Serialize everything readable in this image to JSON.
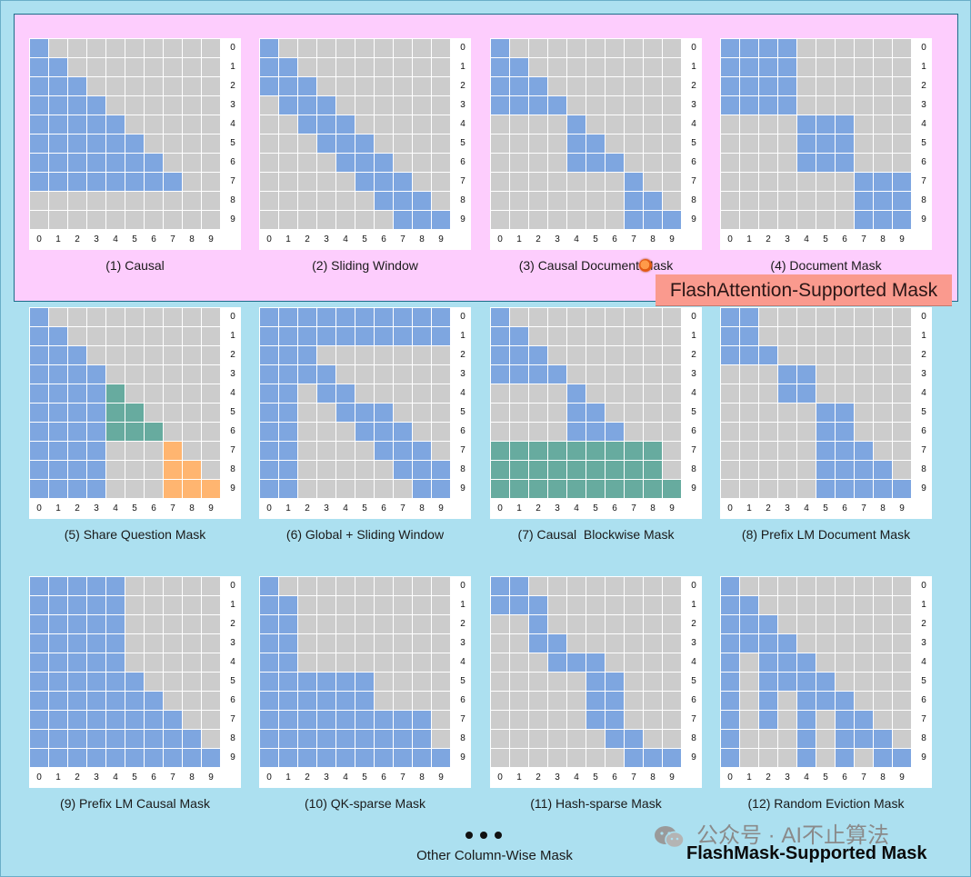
{
  "colors": {
    "background": "#ace0f0",
    "flashattention_region": "#fdcdfd",
    "masked_cell": "#cccccc",
    "attend_cell": "#7ea6e0",
    "global_cell": "#67ab9f",
    "share_cell": "#ffb570",
    "grid_line": "#ffffff",
    "label_background": "#fa9a8e"
  },
  "axis_labels": [
    "0",
    "1",
    "2",
    "3",
    "4",
    "5",
    "6",
    "7",
    "8",
    "9"
  ],
  "panels": [
    {
      "caption": "(1) Causal",
      "grid": [
        "B.........",
        "BB........",
        "BBB.......",
        "BBBB......",
        "BBBBB.....",
        "BBBBBB....",
        "BBBBBBB...",
        "BBBBBBBB..",
        "..........",
        ".........."
      ]
    },
    {
      "caption": "(2) Sliding Window",
      "grid": [
        "B.........",
        "BB........",
        "BBB.......",
        ".BBB......",
        "..BBB.....",
        "...BBB....",
        "....BBB...",
        ".....BBB..",
        "......BBB.",
        ".......BBB"
      ]
    },
    {
      "caption": "(3) Causal Document Mask",
      "grid": [
        "B.........",
        "BB........",
        "BBB.......",
        "BBBB......",
        "....B.....",
        "....BB....",
        "....BBB...",
        ".......B..",
        ".......BB.",
        ".......BBB"
      ]
    },
    {
      "caption": "(4) Document Mask",
      "grid": [
        "BBBB......",
        "BBBB......",
        "BBBB......",
        "BBBB......",
        "....BBB...",
        "....BBB...",
        "....BBB...",
        ".......BBB",
        ".......BBB",
        ".......BBB"
      ]
    },
    {
      "caption": "(5) Share Question Mask",
      "grid": [
        "B.........",
        "BB........",
        "BBB.......",
        "BBBB......",
        "BBBBG.....",
        "BBBBGG....",
        "BBBBGGG...",
        "BBBB...O..",
        "BBBB...OO.",
        "BBBB...OOO"
      ]
    },
    {
      "caption": "(6) Global + Sliding Window",
      "grid": [
        "BBBBBBBBBB",
        "BBBBBBBBBB",
        "BBB.......",
        "BBBB......",
        "BB.BB.....",
        "BB..BBB...",
        "BB...BBB..",
        "BB....BBB.",
        "BB.....BBB",
        "BB......BB"
      ]
    },
    {
      "caption": "(7) Causal  Blockwise Mask",
      "grid": [
        "B.........",
        "BB........",
        "BBB.......",
        "BBBB......",
        "....B.....",
        "....BB....",
        "....BBB...",
        "GGGGGGGGG.",
        "GGGGGGGGG.",
        "GGGGGGGGGG"
      ]
    },
    {
      "caption": "(8) Prefix LM Document Mask",
      "grid": [
        "BB........",
        "BB........",
        "BBB.......",
        "...BB.....",
        "...BB.....",
        ".....BB...",
        ".....BB...",
        ".....BBB..",
        ".....BBBB.",
        ".....BBBBB"
      ]
    },
    {
      "caption": "(9) Prefix LM Causal Mask",
      "grid": [
        "BBBBB.....",
        "BBBBB.....",
        "BBBBB.....",
        "BBBBB.....",
        "BBBBB.....",
        "BBBBBB....",
        "BBBBBBB...",
        "BBBBBBBB..",
        "BBBBBBBBB.",
        "BBBBBBBBBB"
      ]
    },
    {
      "caption": "(10) QK-sparse Mask",
      "grid": [
        "B.........",
        "BB........",
        "BB........",
        "BB........",
        "BB........",
        "BBBBBB....",
        "BBBBBB....",
        "BBBBBBBBB.",
        "BBBBBBBBB.",
        "BBBBBBBBBB"
      ]
    },
    {
      "caption": "(11) Hash-sparse Mask",
      "grid": [
        "BB........",
        "BBB.......",
        "..B.......",
        "..BB......",
        "...BBB....",
        ".....BB...",
        ".....BB...",
        ".....BB...",
        "......BB..",
        ".......BBB"
      ]
    },
    {
      "caption": "(12) Random Eviction Mask",
      "grid": [
        "B.........",
        "BB........",
        "BBB.......",
        "BBBB......",
        "B.BBB.....",
        "B.BBBB....",
        "B.B.BBB...",
        "B.B.B.BB..",
        "B...B.BBB.",
        "B...B.B.BB"
      ]
    }
  ],
  "flashattention_label": "FlashAttention-Supported Mask",
  "ellipsis": "• • •",
  "other_column_label": "Other Column-Wise Mask",
  "watermark": "公众号 · AI不止算法",
  "flashmask_label": "FlashMask-Supported Mask"
}
